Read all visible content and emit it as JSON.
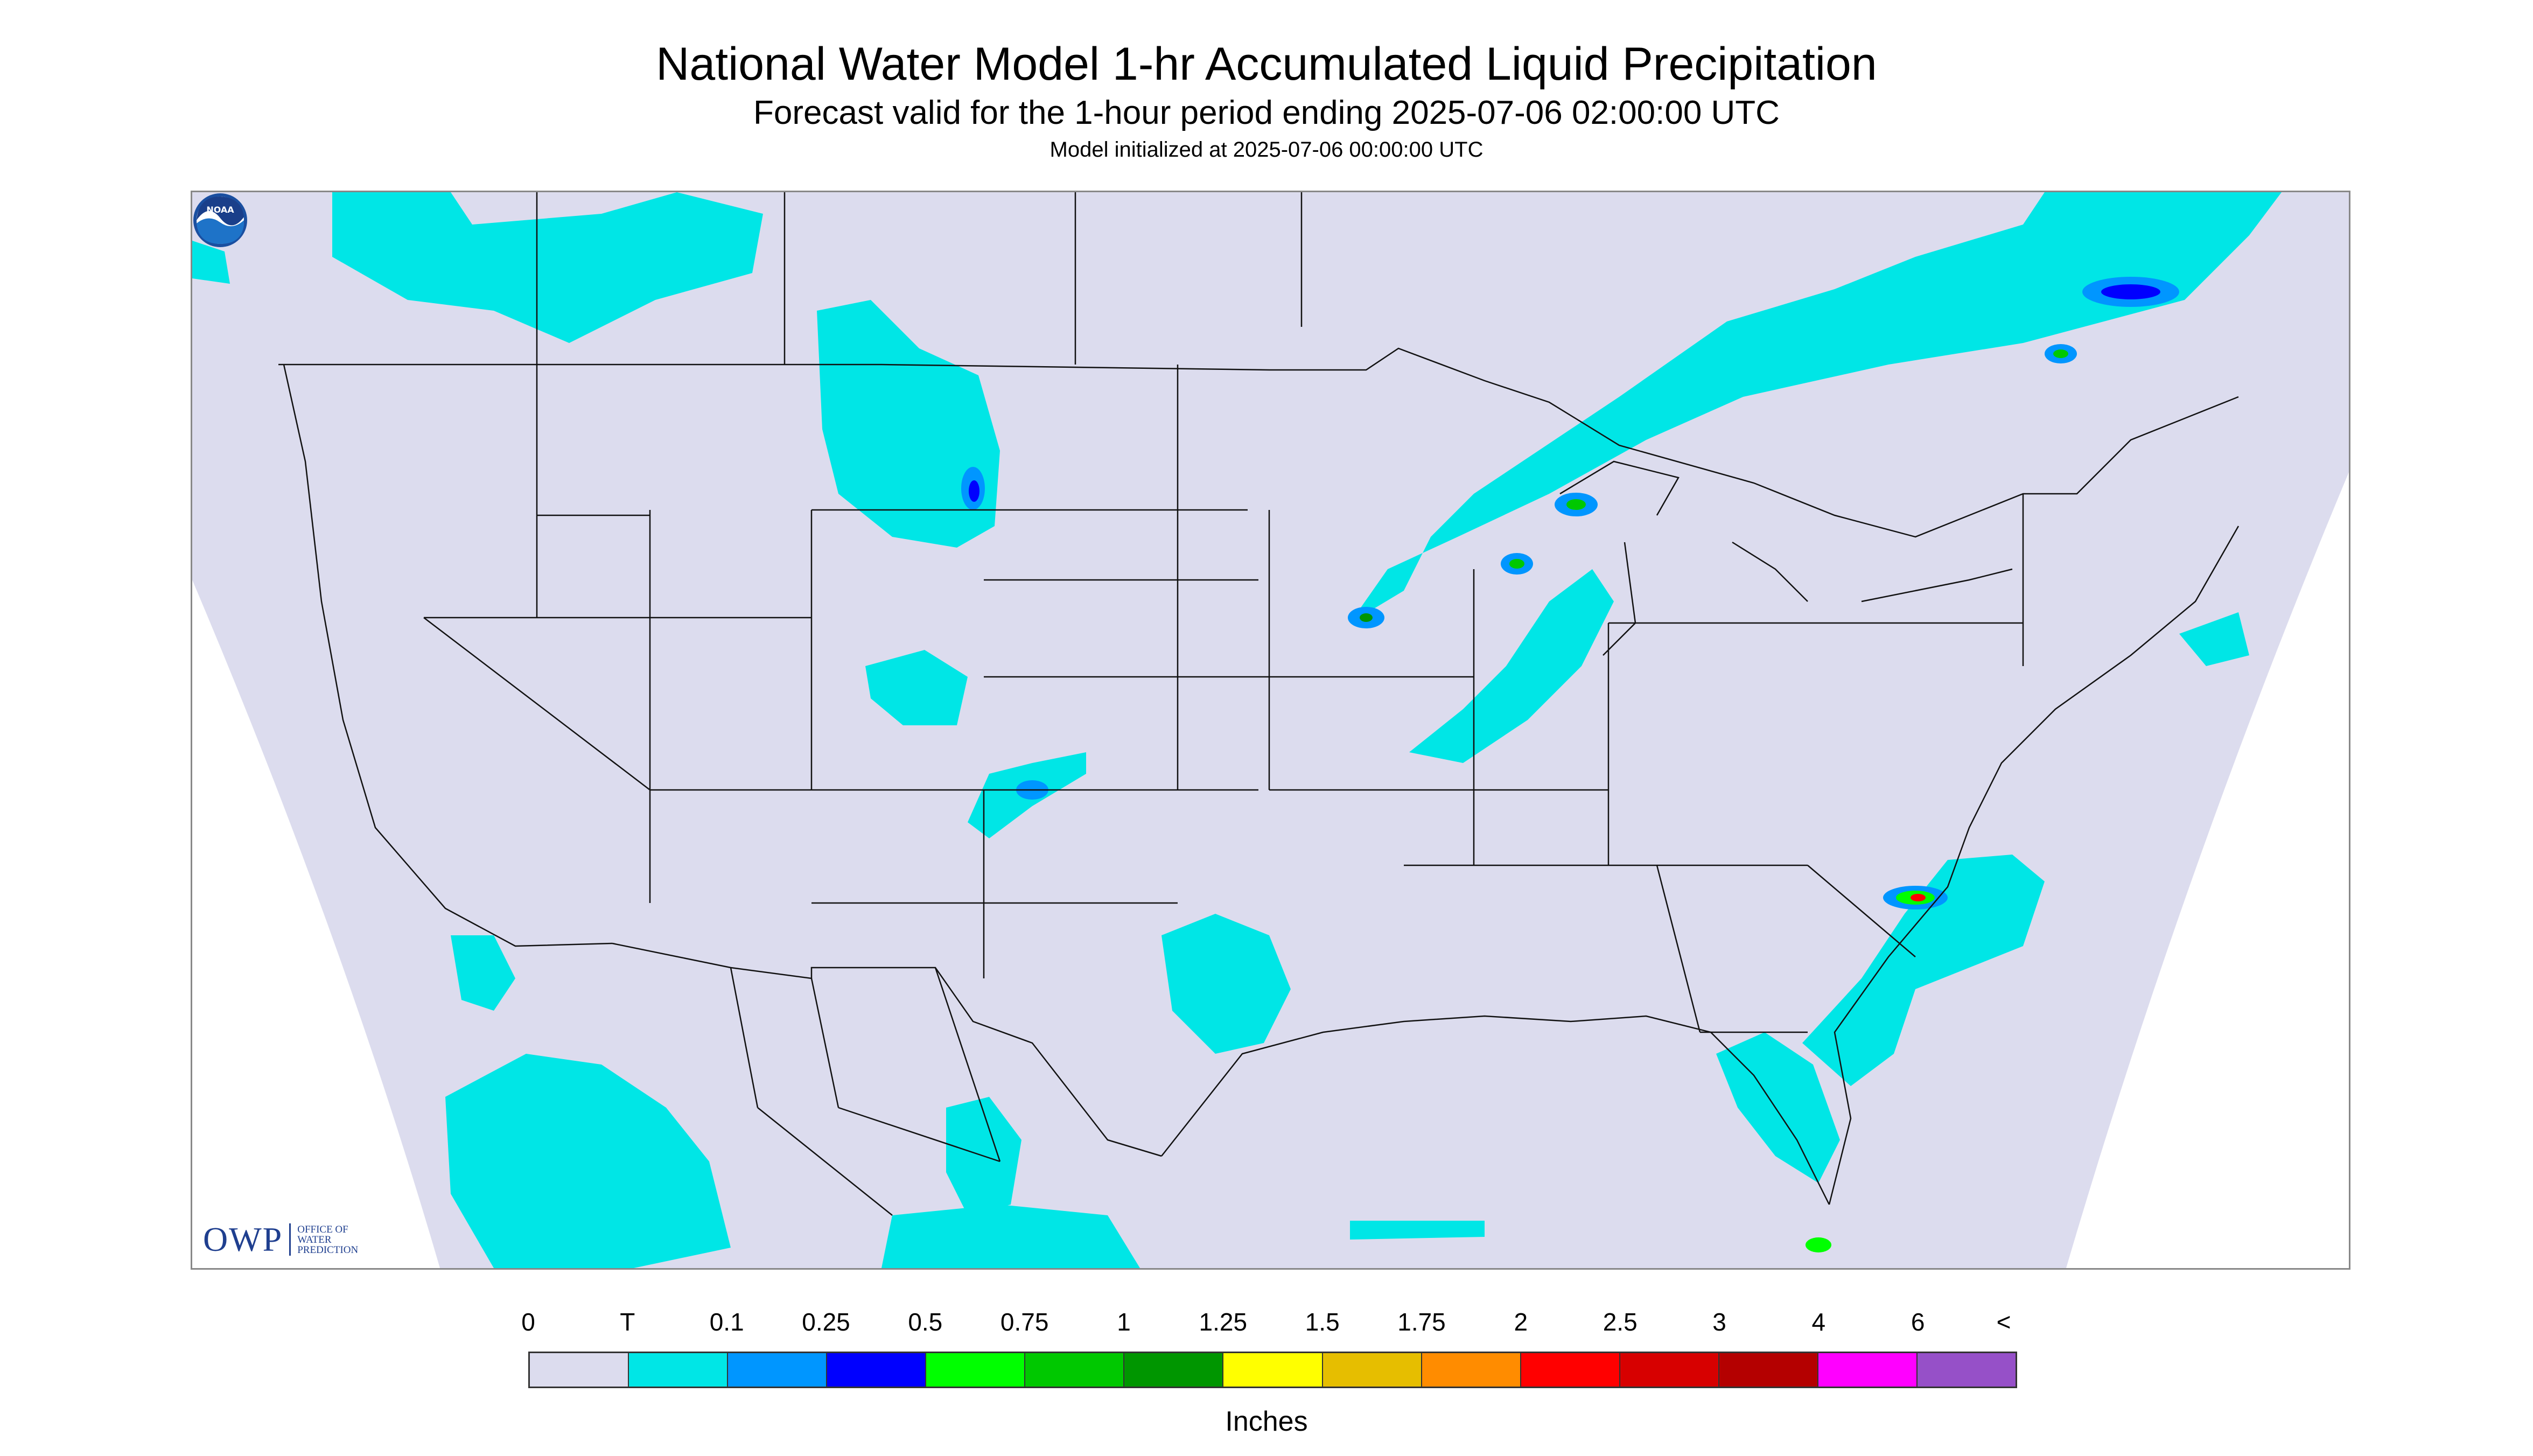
{
  "header": {
    "title": "National Water Model 1-hr Accumulated Liquid Precipitation",
    "subtitle": "Forecast valid for the 1-hour period ending 2025-07-06 02:00:00 UTC",
    "init": "Model initialized at 2025-07-06 00:00:00 UTC"
  },
  "logos": {
    "owp_mark": "OWP",
    "owp_text": [
      "Office of",
      "Water",
      "Prediction"
    ],
    "noaa_text": "NOAA"
  },
  "legend": {
    "labels": [
      "0",
      "T",
      "0.1",
      "0.25",
      "0.5",
      "0.75",
      "1",
      "1.25",
      "1.5",
      "1.75",
      "2",
      "2.5",
      "3",
      "4",
      "6",
      "<"
    ],
    "colors": [
      "#dcdcee",
      "#00e6e6",
      "#0096ff",
      "#0000ff",
      "#00ff00",
      "#00c800",
      "#009600",
      "#ffff00",
      "#e6be00",
      "#ff8c00",
      "#ff0000",
      "#d70000",
      "#b40000",
      "#ff00ff",
      "#9650c8"
    ],
    "units": "Inches"
  },
  "map": {
    "background_color": "#dcdcee",
    "outside_domain_color": "#ffffff",
    "boundary_color": "#111111"
  }
}
